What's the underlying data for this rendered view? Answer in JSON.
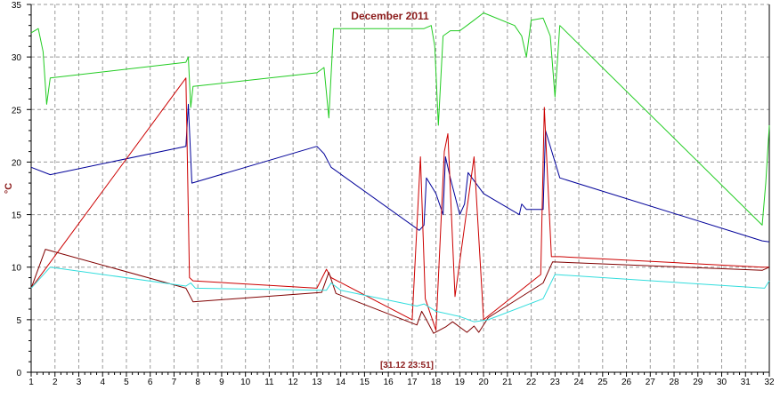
{
  "chart_data": {
    "type": "line",
    "title": "December 2011",
    "ylabel": "°C",
    "xlabel": "",
    "timestamp_label": "[31.12 23:51]",
    "xlim": [
      1,
      32
    ],
    "ylim": [
      0,
      35
    ],
    "x_ticks": [
      "1",
      "2",
      "3",
      "4",
      "5",
      "6",
      "7",
      "8",
      "9",
      "10",
      "11",
      "12",
      "13",
      "14",
      "15",
      "16",
      "17",
      "18",
      "19",
      "20",
      "21",
      "22",
      "23",
      "24",
      "25",
      "26",
      "27",
      "28",
      "29",
      "30",
      "31",
      "32"
    ],
    "y_ticks": [
      "0",
      "5",
      "10",
      "15",
      "20",
      "25",
      "30",
      "35"
    ],
    "grid": true,
    "series": [
      {
        "color": "#22cc22",
        "points": [
          [
            1,
            32.3
          ],
          [
            1.3,
            32.7
          ],
          [
            1.5,
            30.5
          ],
          [
            1.65,
            25.5
          ],
          [
            1.8,
            28
          ],
          [
            7.5,
            29.5
          ],
          [
            7.6,
            30
          ],
          [
            7.7,
            25.2
          ],
          [
            7.8,
            27.2
          ],
          [
            13,
            28.5
          ],
          [
            13.3,
            29
          ],
          [
            13.5,
            24.2
          ],
          [
            13.7,
            32.7
          ],
          [
            17.5,
            32.7
          ],
          [
            17.8,
            33
          ],
          [
            17.95,
            31
          ],
          [
            18.1,
            23.5
          ],
          [
            18.3,
            32
          ],
          [
            18.6,
            32.5
          ],
          [
            19,
            32.5
          ],
          [
            19.3,
            33
          ],
          [
            19.6,
            33.5
          ],
          [
            20,
            34.2
          ],
          [
            21.3,
            33
          ],
          [
            21.6,
            32
          ],
          [
            21.8,
            30
          ],
          [
            22,
            33.5
          ],
          [
            22.5,
            33.7
          ],
          [
            22.8,
            32
          ],
          [
            23,
            26.2
          ],
          [
            23.2,
            33
          ],
          [
            31.7,
            14
          ],
          [
            31.85,
            18
          ],
          [
            32,
            23.5
          ]
        ]
      },
      {
        "color": "#000099",
        "points": [
          [
            1,
            19.5
          ],
          [
            1.8,
            18.8
          ],
          [
            7.5,
            21.5
          ],
          [
            7.6,
            25.5
          ],
          [
            7.75,
            18
          ],
          [
            13,
            21.5
          ],
          [
            13.3,
            20.8
          ],
          [
            13.6,
            19.5
          ],
          [
            17.3,
            13.5
          ],
          [
            17.5,
            14
          ],
          [
            17.6,
            18.5
          ],
          [
            18,
            17
          ],
          [
            18.3,
            15
          ],
          [
            18.4,
            20.5
          ],
          [
            18.6,
            18.5
          ],
          [
            19,
            15
          ],
          [
            19.2,
            16
          ],
          [
            19.35,
            19
          ],
          [
            20,
            17
          ],
          [
            21.5,
            15
          ],
          [
            21.6,
            16
          ],
          [
            21.8,
            15.5
          ],
          [
            22.5,
            15.5
          ],
          [
            22.6,
            23
          ],
          [
            23,
            20
          ],
          [
            23.2,
            18.5
          ],
          [
            31.7,
            12.5
          ],
          [
            32,
            12.4
          ]
        ]
      },
      {
        "color": "#cc0000",
        "points": [
          [
            1,
            8
          ],
          [
            7.5,
            28
          ],
          [
            7.65,
            9
          ],
          [
            7.8,
            8.7
          ],
          [
            13,
            8
          ],
          [
            13.4,
            9.8
          ],
          [
            13.6,
            9
          ],
          [
            17,
            5
          ],
          [
            17.35,
            20.5
          ],
          [
            17.55,
            7
          ],
          [
            18,
            4
          ],
          [
            18.35,
            21
          ],
          [
            18.5,
            22.7
          ],
          [
            18.8,
            7.2
          ],
          [
            19.6,
            20.5
          ],
          [
            20,
            5
          ],
          [
            22.4,
            9.3
          ],
          [
            22.55,
            25.2
          ],
          [
            22.7,
            18
          ],
          [
            22.85,
            11
          ],
          [
            23.2,
            11
          ],
          [
            31.7,
            10
          ],
          [
            32,
            10
          ]
        ]
      },
      {
        "color": "#800000",
        "points": [
          [
            1,
            8
          ],
          [
            1.6,
            11.7
          ],
          [
            7.5,
            8
          ],
          [
            7.8,
            6.7
          ],
          [
            13.2,
            7.6
          ],
          [
            13.5,
            9.5
          ],
          [
            13.8,
            7.5
          ],
          [
            17.2,
            4.5
          ],
          [
            17.4,
            5.8
          ],
          [
            17.6,
            5
          ],
          [
            17.9,
            3.7
          ],
          [
            18.4,
            4.3
          ],
          [
            18.7,
            4.8
          ],
          [
            19.3,
            3.8
          ],
          [
            19.6,
            4.4
          ],
          [
            19.8,
            3.8
          ],
          [
            20.2,
            5.2
          ],
          [
            22.5,
            8.5
          ],
          [
            22.7,
            9.5
          ],
          [
            22.9,
            10.5
          ],
          [
            31.7,
            9.7
          ],
          [
            32,
            10
          ]
        ]
      },
      {
        "color": "#33dddd",
        "points": [
          [
            1,
            8
          ],
          [
            1.8,
            10
          ],
          [
            7.5,
            8.2
          ],
          [
            7.7,
            8.5
          ],
          [
            7.9,
            8
          ],
          [
            13.4,
            7.8
          ],
          [
            13.6,
            8.5
          ],
          [
            14,
            7.8
          ],
          [
            17.2,
            6.3
          ],
          [
            17.5,
            6.5
          ],
          [
            18,
            5.8
          ],
          [
            19,
            5.3
          ],
          [
            19.6,
            4.8
          ],
          [
            20.2,
            5
          ],
          [
            22.5,
            7
          ],
          [
            23,
            9.3
          ],
          [
            31.8,
            8
          ],
          [
            32,
            8.7
          ]
        ]
      }
    ]
  }
}
